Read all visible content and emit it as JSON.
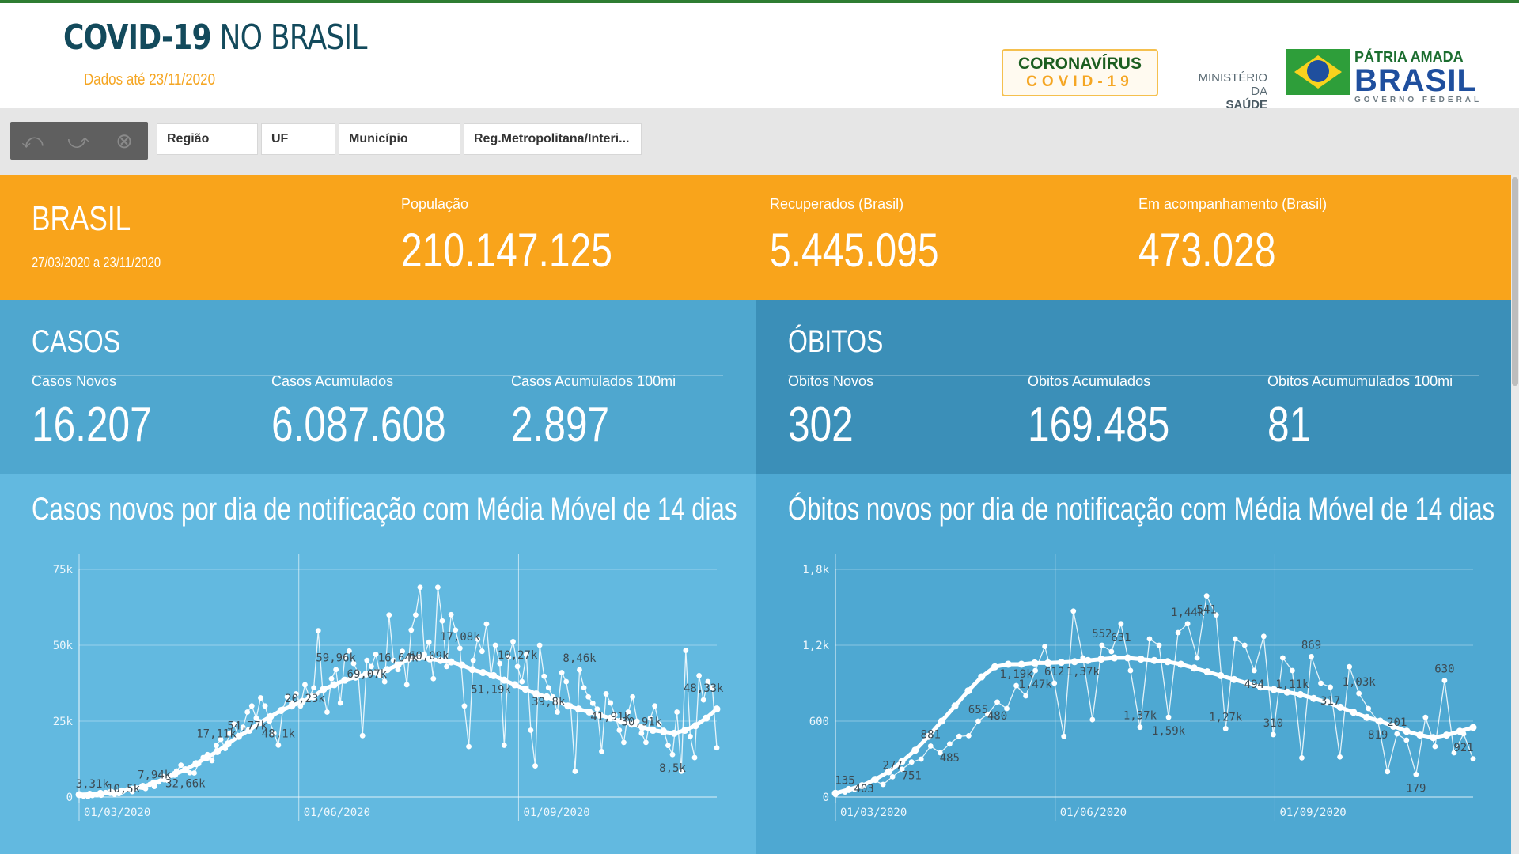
{
  "header": {
    "title_bold": "COVID-19",
    "title_light": "NO BRASIL",
    "subtitle": "Dados até 23/11/2020",
    "logo_corona_line1": "CORONAVÍRUS",
    "logo_corona_line2": "COVID-19",
    "ministerio": "MINISTÉRIO DA",
    "saude": "SAÚDE",
    "patria_line1": "PÁTRIA AMADA",
    "patria_line2": "BRASIL",
    "patria_line3": "GOVERNO FEDERAL"
  },
  "toolbar": {
    "icons": [
      "undo-icon",
      "redo-icon",
      "clear-selection-icon"
    ],
    "filters": [
      "Região",
      "UF",
      "Município",
      "Reg.Metropolitana/Interi..."
    ]
  },
  "summary": {
    "name": "BRASIL",
    "period": "27/03/2020 a 23/11/2020",
    "populacao_label": "População",
    "populacao": "210.147.125",
    "recuperados_label": "Recuperados (Brasil)",
    "recuperados": "5.445.095",
    "acompanhamento_label": "Em acompanhamento (Brasil)",
    "acompanhamento": "473.028"
  },
  "casos": {
    "title": "CASOS",
    "novos_label": "Casos Novos",
    "novos": "16.207",
    "acumulados_label": "Casos Acumulados",
    "acumulados": "6.087.608",
    "acum100_label": "Casos Acumulados 100mi",
    "acum100": "2.897"
  },
  "obitos": {
    "title": "ÓBITOS",
    "novos_label": "Obitos Novos",
    "novos": "302",
    "acumulados_label": "Obitos Acumulados",
    "acumulados": "169.485",
    "acum100_label": "Obitos Acumumulados 100mi",
    "acum100": "81"
  },
  "colors": {
    "orange": "#f9a41b",
    "casos_bg": "#4fa7cf",
    "obitos_bg": "#3b8fb8"
  },
  "chart_data": [
    {
      "type": "line",
      "title": "Casos novos por dia de notificação com Média Móvel de 14 dias",
      "ylim": [
        0,
        75000
      ],
      "yticks": [
        "0",
        "25k",
        "50k",
        "75k"
      ],
      "ytick_values": [
        0,
        25000,
        50000,
        75000
      ],
      "xticks": [
        "01/03/2020",
        "01/06/2020",
        "01/09/2020"
      ],
      "xtick_days": [
        0,
        92,
        184
      ],
      "x_range_days": [
        0,
        267
      ],
      "grid": true,
      "series": [
        {
          "values": [
            1000,
            300,
            200,
            500,
            800,
            600,
            1500,
            1200,
            900,
            1100,
            2000,
            2500,
            1800,
            3000,
            3310,
            2800,
            4200,
            3500,
            5000,
            6800,
            5500,
            7200,
            8600,
            10500,
            9000,
            8000,
            7940,
            11000,
            13000,
            14000,
            12000,
            17000,
            19000,
            16000,
            21000,
            24000,
            20000,
            23000,
            28000,
            30000,
            26000,
            32660,
            30000,
            25000,
            21000,
            17110,
            29000,
            33000,
            31000,
            34000,
            30000,
            37000,
            33000,
            36000,
            54770,
            35000,
            28000,
            39000,
            42000,
            31000,
            46000,
            48100,
            44000,
            41000,
            20230,
            45000,
            43000,
            47000,
            40000,
            38000,
            59960,
            45000,
            42000,
            48000,
            37000,
            55000,
            60000,
            69070,
            47000,
            51000,
            39000,
            69070,
            58000,
            43000,
            60090,
            55000,
            49000,
            30000,
            16640,
            45000,
            52000,
            48000,
            57000,
            40000,
            50000,
            44000,
            17080,
            46000,
            51190,
            43000,
            38000,
            47000,
            22000,
            10270,
            50000,
            39800,
            36000,
            33000,
            28000,
            41000,
            38000,
            30000,
            8460,
            41910,
            36000,
            33000,
            30910,
            29000,
            15000,
            34000,
            31000,
            27000,
            22000,
            18000,
            28000,
            33000,
            25000,
            21000,
            18000,
            26000,
            30000,
            24000,
            22000,
            17000,
            14000,
            28000,
            8500,
            48330,
            20000,
            13000,
            40000,
            32000,
            38000,
            36000,
            16207
          ],
          "moving_average": [
            800,
            900,
            1200,
            1600,
            2000,
            2600,
            3500,
            4500,
            6000,
            7500,
            9000,
            11000,
            13000,
            15000,
            17500,
            20000,
            22000,
            24500,
            26500,
            28500,
            30000,
            31500,
            33000,
            35500,
            37000,
            38500,
            39500,
            40500,
            41000,
            42000,
            43500,
            45500,
            46000,
            45500,
            45000,
            44500,
            43500,
            42000,
            41000,
            40000,
            38500,
            37000,
            35500,
            34000,
            33000,
            31500,
            30000,
            29000,
            28000,
            27000,
            26000,
            25000,
            24000,
            23000,
            22000,
            21500,
            21000,
            22000,
            23500,
            26000,
            29000
          ]
        }
      ],
      "annotations": [
        "3,31k",
        "10,5k",
        "7,94k",
        "32,66k",
        "17,11k",
        "54,77k",
        "48,1k",
        "20,23k",
        "59,96k",
        "69,07k",
        "16,64k",
        "60,09k",
        "17,08k",
        "51,19k",
        "10,27k",
        "39,8k",
        "8,46k",
        "41,91k",
        "30,91k",
        "8,5k",
        "48,33k"
      ]
    },
    {
      "type": "line",
      "title": "Óbitos novos por dia de notificação com Média Móvel de 14 dias",
      "ylim": [
        0,
        1800
      ],
      "yticks": [
        "0",
        "600",
        "1,2k",
        "1,8k"
      ],
      "ytick_values": [
        0,
        600,
        1200,
        1800
      ],
      "xticks": [
        "01/03/2020",
        "01/06/2020",
        "01/09/2020"
      ],
      "xtick_days": [
        0,
        92,
        184
      ],
      "x_range_days": [
        0,
        267
      ],
      "grid": true,
      "series": [
        {
          "values": [
            20,
            40,
            60,
            90,
            135,
            100,
            160,
            220,
            277,
            300,
            403,
            350,
            420,
            480,
            485,
            600,
            655,
            751,
            700,
            881,
            800,
            1000,
            1190,
            900,
            480,
            1470,
            1100,
            612,
            1200,
            1150,
            1370,
            1000,
            552,
            1250,
            1200,
            631,
            1300,
            1370,
            1100,
            1590,
            1440,
            541,
            1250,
            1200,
            1000,
            1270,
            494,
            1100,
            1000,
            310,
            1110,
            900,
            869,
            317,
            1030,
            819,
            700,
            600,
            201,
            500,
            450,
            179,
            630,
            400,
            921,
            350,
            500,
            302
          ],
          "moving_average": [
            30,
            60,
            90,
            140,
            200,
            280,
            370,
            480,
            600,
            720,
            840,
            950,
            1030,
            1050,
            1050,
            1060,
            1060,
            1065,
            1070,
            1080,
            1090,
            1100,
            1100,
            1090,
            1080,
            1070,
            1050,
            1020,
            990,
            960,
            930,
            900,
            870,
            850,
            830,
            810,
            780,
            750,
            710,
            670,
            630,
            600,
            560,
            520,
            490,
            470,
            490,
            520,
            550
          ]
        }
      ],
      "annotations": [
        "135",
        "403",
        "277",
        "751",
        "881",
        "485",
        "655",
        "480",
        "1,19k",
        "1,47k",
        "612",
        "1,37k",
        "552",
        "631",
        "1,37k",
        "1,59k",
        "1,44k",
        "541",
        "1,27k",
        "494",
        "310",
        "1,11k",
        "869",
        "317",
        "1,03k",
        "819",
        "201",
        "179",
        "630",
        "921"
      ]
    }
  ]
}
